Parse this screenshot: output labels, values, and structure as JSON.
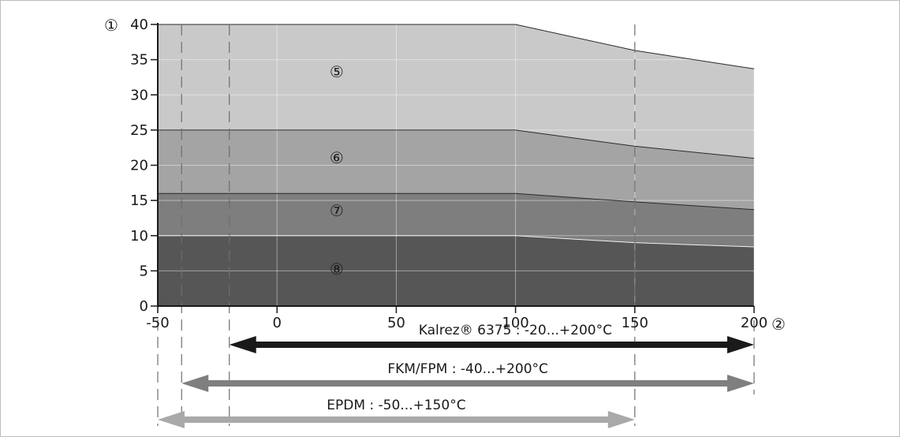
{
  "chart_data": {
    "type": "area",
    "y_marker": "①",
    "x_marker": "②",
    "xlim": [
      -50,
      200
    ],
    "ylim": [
      0,
      40
    ],
    "x_ticks": [
      -50,
      0,
      50,
      100,
      150,
      200
    ],
    "y_ticks": [
      0,
      5,
      10,
      15,
      20,
      25,
      30,
      35,
      40
    ],
    "grid": true,
    "series": [
      {
        "name": "⑤",
        "x": [
          -50,
          100,
          150,
          200
        ],
        "y": [
          40,
          40,
          36.3,
          33.7
        ],
        "color": "#c9c9c9"
      },
      {
        "name": "⑥",
        "x": [
          -50,
          100,
          150,
          200
        ],
        "y": [
          25,
          25,
          22.7,
          21.0
        ],
        "color": "#a4a4a4"
      },
      {
        "name": "⑦",
        "x": [
          -50,
          100,
          150,
          200
        ],
        "y": [
          16,
          16,
          14.8,
          13.7
        ],
        "color": "#7e7e7e"
      },
      {
        "name": "⑧",
        "x": [
          -50,
          100,
          150,
          200
        ],
        "y": [
          10,
          10,
          9.0,
          8.4
        ],
        "color": "#565656"
      }
    ],
    "series_label_positions": [
      {
        "name": "⑤",
        "x": 25,
        "y": 32.5
      },
      {
        "name": "⑥",
        "x": 25,
        "y": 20.3
      },
      {
        "name": "⑦",
        "x": 25,
        "y": 12.8
      },
      {
        "name": "⑧",
        "x": 25,
        "y": 4.5
      }
    ],
    "ranges": [
      {
        "label": "Kalrez® 6375 : -20...+200°C",
        "min": -20,
        "max": 200,
        "color": "#1a1a1a"
      },
      {
        "label": "FKM/FPM : -40...+200°C",
        "min": -40,
        "max": 200,
        "color": "#7f7f7f"
      },
      {
        "label": "EPDM : -50...+150°C",
        "min": -50,
        "max": 150,
        "color": "#a9a9a9"
      }
    ]
  }
}
